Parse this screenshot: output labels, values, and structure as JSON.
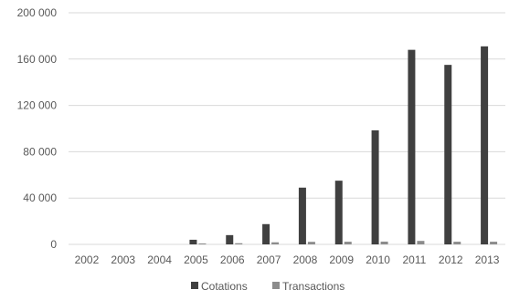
{
  "chart_data": {
    "type": "bar",
    "categories": [
      "2002",
      "2003",
      "2004",
      "2005",
      "2006",
      "2007",
      "2008",
      "2009",
      "2010",
      "2011",
      "2012",
      "2013"
    ],
    "series": [
      {
        "name": "Cotations",
        "color": "#404040",
        "values": [
          0,
          0,
          0,
          4000,
          8000,
          17500,
          49000,
          55000,
          98500,
          168000,
          155000,
          171000
        ]
      },
      {
        "name": "Transactions",
        "color": "#8c8c8c",
        "values": [
          0,
          0,
          0,
          800,
          1000,
          1800,
          2200,
          2300,
          2400,
          3000,
          2300,
          2300
        ]
      }
    ],
    "y_ticks": [
      {
        "value": 0,
        "label": "0"
      },
      {
        "value": 40000,
        "label": "40 000"
      },
      {
        "value": 80000,
        "label": "80 000"
      },
      {
        "value": 120000,
        "label": "120 000"
      },
      {
        "value": 160000,
        "label": "160 000"
      },
      {
        "value": 200000,
        "label": "200 000"
      }
    ],
    "ylim": [
      0,
      200000
    ],
    "grid": true,
    "legend_position": "bottom"
  }
}
